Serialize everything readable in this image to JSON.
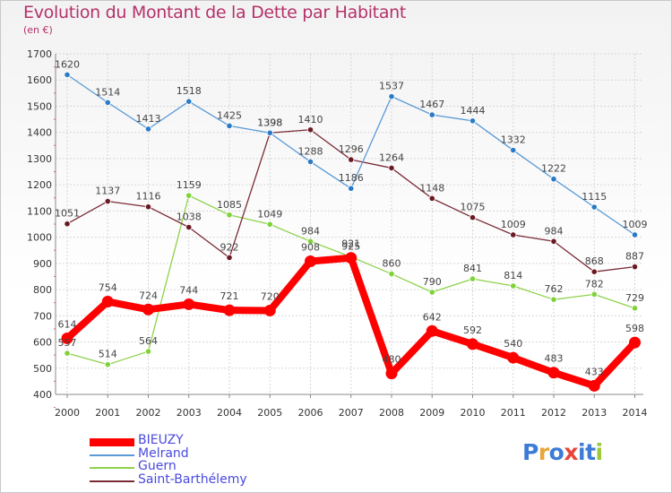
{
  "title": "Evolution du Montant de la Dette par Habitant",
  "subtitle": "(en €)",
  "logo": {
    "letters": [
      "P",
      "r",
      "o",
      "x",
      "i",
      "t",
      "i"
    ],
    "colors": [
      "#3d7bd6",
      "#e8a63a",
      "#3d7bd6",
      "#e8453a",
      "#3d7bd6",
      "#3d7bd6",
      "#9cc83a"
    ]
  },
  "chart_data": {
    "type": "line",
    "title": "Evolution du Montant de la Dette par Habitant",
    "ylabel": "(en €)",
    "xlabel": "",
    "x": [
      "2000",
      "2001",
      "2002",
      "2003",
      "2004",
      "2005",
      "2006",
      "2007",
      "2008",
      "2009",
      "2010",
      "2011",
      "2012",
      "2013",
      "2014"
    ],
    "ylim": [
      400,
      1700
    ],
    "yticks": [
      400,
      500,
      600,
      700,
      800,
      900,
      1000,
      1100,
      1200,
      1300,
      1400,
      1500,
      1600,
      1700
    ],
    "legend_position": "bottom-left",
    "series": [
      {
        "name": "Guern",
        "color": "#8ed24a",
        "marker": "#7ed23a",
        "values": [
          557,
          514,
          564,
          1159,
          1085,
          1049,
          984,
          925,
          860,
          790,
          841,
          814,
          762,
          782,
          729
        ]
      },
      {
        "name": "Saint-Barthélemy",
        "color": "#7a2a36",
        "marker": "#6a1a22",
        "values": [
          1051,
          1137,
          1116,
          1038,
          922,
          1398,
          1410,
          1296,
          1264,
          1148,
          1075,
          1009,
          984,
          868,
          887
        ]
      },
      {
        "name": "Melrand",
        "color": "#5a9ad6",
        "marker": "#2a7ac6",
        "values": [
          1620,
          1514,
          1413,
          1518,
          1425,
          1398,
          1288,
          1186,
          1537,
          1467,
          1444,
          1332,
          1222,
          1115,
          1009
        ]
      },
      {
        "name": "BIEUZY",
        "color": "#ff0000",
        "marker": "#ff0000",
        "values": [
          614,
          754,
          724,
          744,
          721,
          720,
          908,
          921,
          480,
          642,
          592,
          540,
          483,
          433,
          598
        ]
      }
    ],
    "legend": [
      "BIEUZY",
      "Melrand",
      "Guern",
      "Saint-Barthélemy"
    ],
    "data_labels": [
      {
        "series": "Melrand",
        "x": "2000",
        "text": "1620"
      },
      {
        "series": "Melrand",
        "x": "2001",
        "text": "1514"
      },
      {
        "series": "Melrand",
        "x": "2002",
        "text": "1413"
      },
      {
        "series": "Melrand",
        "x": "2003",
        "text": "1518"
      },
      {
        "series": "Melrand",
        "x": "2004",
        "text": "1425"
      },
      {
        "series": "Melrand",
        "x": "2005",
        "text": "1398"
      },
      {
        "series": "Melrand",
        "x": "2006",
        "text": "1288"
      },
      {
        "series": "Melrand",
        "x": "2007",
        "text": "1186"
      },
      {
        "series": "Melrand",
        "x": "2008",
        "text": "1537"
      },
      {
        "series": "Melrand",
        "x": "2009",
        "text": "1467"
      },
      {
        "series": "Melrand",
        "x": "2010",
        "text": "1444"
      },
      {
        "series": "Melrand",
        "x": "2011",
        "text": "1332"
      },
      {
        "series": "Melrand",
        "x": "2012",
        "text": "1222"
      },
      {
        "series": "Melrand",
        "x": "2013",
        "text": "1115"
      },
      {
        "series": "Melrand",
        "x": "2014",
        "text": "1009"
      },
      {
        "series": "Saint-Barthélemy",
        "x": "2000",
        "text": "1051"
      },
      {
        "series": "Saint-Barthélemy",
        "x": "2001",
        "text": "1137"
      },
      {
        "series": "Saint-Barthélemy",
        "x": "2002",
        "text": "1116"
      },
      {
        "series": "Saint-Barthélemy",
        "x": "2003",
        "text": "1038"
      },
      {
        "series": "Saint-Barthélemy",
        "x": "2004",
        "text": "922"
      },
      {
        "series": "Saint-Barthélemy",
        "x": "2005",
        "text": "1398"
      },
      {
        "series": "Saint-Barthélemy",
        "x": "2006",
        "text": "1410"
      },
      {
        "series": "Saint-Barthélemy",
        "x": "2007",
        "text": "1296"
      },
      {
        "series": "Saint-Barthélemy",
        "x": "2008",
        "text": "1264"
      },
      {
        "series": "Saint-Barthélemy",
        "x": "2009",
        "text": "1148"
      },
      {
        "series": "Saint-Barthélemy",
        "x": "2010",
        "text": "1075"
      },
      {
        "series": "Saint-Barthélemy",
        "x": "2011",
        "text": "1009"
      },
      {
        "series": "Saint-Barthélemy",
        "x": "2012",
        "text": "984"
      },
      {
        "series": "Saint-Barthélemy",
        "x": "2013",
        "text": "868"
      },
      {
        "series": "Saint-Barthélemy",
        "x": "2014",
        "text": "887"
      },
      {
        "series": "Guern",
        "x": "2000",
        "text": "557"
      },
      {
        "series": "Guern",
        "x": "2001",
        "text": "514"
      },
      {
        "series": "Guern",
        "x": "2002",
        "text": "564"
      },
      {
        "series": "Guern",
        "x": "2003",
        "text": "1159"
      },
      {
        "series": "Guern",
        "x": "2004",
        "text": "1085"
      },
      {
        "series": "Guern",
        "x": "2005",
        "text": "1049"
      },
      {
        "series": "Guern",
        "x": "2006",
        "text": "984"
      },
      {
        "series": "Guern",
        "x": "2007",
        "text": "925"
      },
      {
        "series": "Guern",
        "x": "2008",
        "text": "860"
      },
      {
        "series": "Guern",
        "x": "2009",
        "text": "790"
      },
      {
        "series": "Guern",
        "x": "2010",
        "text": "841"
      },
      {
        "series": "Guern",
        "x": "2011",
        "text": "814"
      },
      {
        "series": "Guern",
        "x": "2012",
        "text": "762"
      },
      {
        "series": "Guern",
        "x": "2013",
        "text": "782"
      },
      {
        "series": "Guern",
        "x": "2014",
        "text": "729"
      },
      {
        "series": "BIEUZY",
        "x": "2000",
        "text": "614"
      },
      {
        "series": "BIEUZY",
        "x": "2001",
        "text": "754"
      },
      {
        "series": "BIEUZY",
        "x": "2002",
        "text": "724"
      },
      {
        "series": "BIEUZY",
        "x": "2003",
        "text": "744"
      },
      {
        "series": "BIEUZY",
        "x": "2004",
        "text": "721"
      },
      {
        "series": "BIEUZY",
        "x": "2005",
        "text": "720"
      },
      {
        "series": "BIEUZY",
        "x": "2006",
        "text": "908"
      },
      {
        "series": "BIEUZY",
        "x": "2007",
        "text": "921"
      },
      {
        "series": "BIEUZY",
        "x": "2008",
        "text": "480"
      },
      {
        "series": "BIEUZY",
        "x": "2009",
        "text": "642"
      },
      {
        "series": "BIEUZY",
        "x": "2010",
        "text": "592"
      },
      {
        "series": "BIEUZY",
        "x": "2011",
        "text": "540"
      },
      {
        "series": "BIEUZY",
        "x": "2012",
        "text": "483"
      },
      {
        "series": "BIEUZY",
        "x": "2013",
        "text": "433"
      },
      {
        "series": "BIEUZY",
        "x": "2014",
        "text": "598"
      }
    ]
  }
}
